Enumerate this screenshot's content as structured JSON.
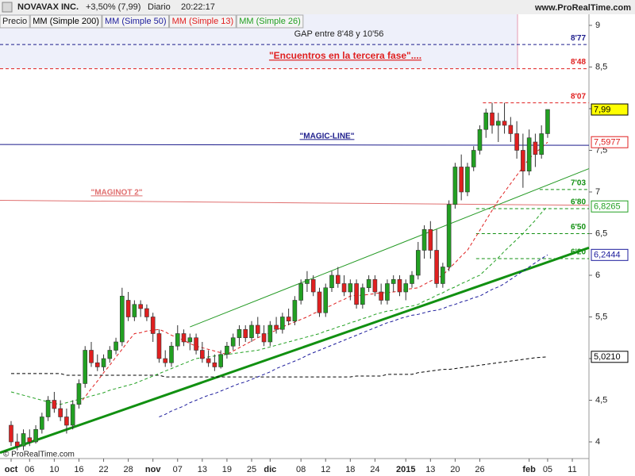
{
  "chart_data": {
    "type": "candlestick",
    "title": "NOVAVAX INC.",
    "subtitle": "+3,50% (7,99)",
    "period": "Diario",
    "time": "20:22:17",
    "source": "www.ProRealTime.com",
    "copyright": "© ProRealTime.com",
    "price_name": "Precio",
    "up_color": "#22a022",
    "down_color": "#e02020",
    "xlim": [
      -1.8,
      93.7
    ],
    "ylim": [
      3.8,
      9.133
    ],
    "yticks": [
      9,
      {
        "value": 8.5,
        "label": "8,5"
      },
      8,
      {
        "value": 7.5,
        "label": "7,5"
      },
      7,
      {
        "value": 6.5,
        "label": "6,5"
      },
      6,
      {
        "value": 5.5,
        "label": "5,5"
      },
      5,
      {
        "value": 4.5,
        "label": "4,5"
      },
      4
    ],
    "categories": [
      "oct",
      null,
      null,
      "06",
      null,
      null,
      null,
      "10",
      null,
      null,
      null,
      "16",
      null,
      null,
      null,
      "22",
      null,
      null,
      null,
      "28",
      null,
      null,
      null,
      "nov",
      null,
      null,
      null,
      "07",
      null,
      null,
      null,
      "13",
      null,
      null,
      null,
      "19",
      null,
      null,
      null,
      "25",
      null,
      null,
      "dic",
      null,
      null,
      null,
      null,
      "08",
      null,
      null,
      null,
      "12",
      null,
      null,
      null,
      "18",
      null,
      null,
      null,
      "24",
      null,
      null,
      null,
      null,
      "2015",
      null,
      null,
      null,
      "13",
      null,
      null,
      null,
      "20",
      null,
      null,
      null,
      "26",
      null,
      null,
      null,
      null,
      null,
      null,
      null,
      "feb",
      null,
      null,
      "05",
      null,
      null,
      null,
      "11",
      null,
      null
    ],
    "ohlc": [
      [
        4.2,
        4.25,
        3.95,
        4.0
      ],
      [
        4.0,
        4.1,
        3.9,
        3.95
      ],
      [
        3.95,
        4.15,
        3.9,
        4.1
      ],
      [
        4.05,
        4.15,
        3.95,
        4.0
      ],
      [
        4.0,
        4.2,
        3.98,
        4.15
      ],
      [
        4.15,
        4.35,
        4.1,
        4.3
      ],
      [
        4.3,
        4.55,
        4.25,
        4.5
      ],
      [
        4.5,
        4.6,
        4.35,
        4.4
      ],
      [
        4.4,
        4.5,
        4.25,
        4.3
      ],
      [
        4.3,
        4.4,
        4.1,
        4.2
      ],
      [
        4.2,
        4.5,
        4.15,
        4.45
      ],
      [
        4.45,
        4.75,
        4.4,
        4.7
      ],
      [
        4.7,
        5.15,
        4.65,
        5.1
      ],
      [
        5.1,
        5.2,
        4.9,
        4.95
      ],
      [
        4.95,
        5.05,
        4.85,
        4.9
      ],
      [
        4.9,
        5.05,
        4.85,
        5.0
      ],
      [
        5.0,
        5.15,
        4.95,
        5.1
      ],
      [
        5.1,
        5.25,
        5.05,
        5.2
      ],
      [
        5.2,
        5.85,
        5.15,
        5.75
      ],
      [
        5.7,
        5.8,
        5.45,
        5.5
      ],
      [
        5.5,
        5.7,
        5.45,
        5.65
      ],
      [
        5.65,
        5.7,
        5.5,
        5.6
      ],
      [
        5.6,
        5.65,
        5.45,
        5.5
      ],
      [
        5.5,
        5.55,
        5.2,
        5.3
      ],
      [
        5.3,
        5.35,
        4.95,
        5.0
      ],
      [
        5.0,
        5.1,
        4.9,
        4.95
      ],
      [
        4.95,
        5.2,
        4.9,
        5.15
      ],
      [
        5.15,
        5.4,
        5.1,
        5.3
      ],
      [
        5.3,
        5.35,
        5.15,
        5.2
      ],
      [
        5.2,
        5.3,
        5.1,
        5.25
      ],
      [
        5.25,
        5.3,
        5.05,
        5.1
      ],
      [
        5.1,
        5.2,
        4.95,
        5.0
      ],
      [
        5.0,
        5.1,
        4.9,
        4.95
      ],
      [
        4.95,
        5.05,
        4.85,
        4.9
      ],
      [
        4.9,
        5.1,
        4.88,
        5.05
      ],
      [
        5.05,
        5.2,
        5.0,
        5.15
      ],
      [
        5.15,
        5.3,
        5.1,
        5.25
      ],
      [
        5.25,
        5.4,
        5.15,
        5.35
      ],
      [
        5.35,
        5.4,
        5.2,
        5.25
      ],
      [
        5.25,
        5.45,
        5.2,
        5.4
      ],
      [
        5.4,
        5.5,
        5.25,
        5.3
      ],
      [
        5.3,
        5.4,
        5.15,
        5.2
      ],
      [
        5.2,
        5.45,
        5.15,
        5.4
      ],
      [
        5.4,
        5.5,
        5.3,
        5.35
      ],
      [
        5.35,
        5.55,
        5.3,
        5.5
      ],
      [
        5.5,
        5.6,
        5.4,
        5.45
      ],
      [
        5.45,
        5.75,
        5.4,
        5.7
      ],
      [
        5.7,
        5.95,
        5.65,
        5.9
      ],
      [
        5.9,
        6.05,
        5.8,
        5.95
      ],
      [
        5.95,
        6.0,
        5.75,
        5.8
      ],
      [
        5.8,
        5.85,
        5.5,
        5.55
      ],
      [
        5.55,
        5.9,
        5.5,
        5.85
      ],
      [
        5.85,
        6.05,
        5.8,
        6.0
      ],
      [
        6.0,
        6.1,
        5.85,
        5.9
      ],
      [
        5.9,
        6.0,
        5.75,
        5.8
      ],
      [
        5.8,
        5.95,
        5.7,
        5.9
      ],
      [
        5.9,
        5.95,
        5.6,
        5.65
      ],
      [
        5.65,
        5.9,
        5.6,
        5.85
      ],
      [
        5.85,
        6.0,
        5.8,
        5.95
      ],
      [
        5.95,
        6.0,
        5.75,
        5.8
      ],
      [
        5.8,
        5.9,
        5.65,
        5.7
      ],
      [
        5.7,
        5.95,
        5.65,
        5.9
      ],
      [
        5.9,
        6.0,
        5.8,
        5.95
      ],
      [
        5.95,
        6.0,
        5.75,
        5.8
      ],
      [
        5.8,
        5.95,
        5.7,
        5.9
      ],
      [
        5.9,
        6.05,
        5.85,
        6.0
      ],
      [
        6.0,
        6.4,
        5.95,
        6.3
      ],
      [
        6.3,
        6.6,
        6.2,
        6.55
      ],
      [
        6.55,
        6.65,
        6.2,
        6.3
      ],
      [
        6.3,
        6.55,
        5.85,
        5.9
      ],
      [
        5.9,
        6.15,
        5.85,
        6.1
      ],
      [
        6.1,
        6.9,
        6.05,
        6.85
      ],
      [
        6.85,
        7.35,
        6.8,
        7.3
      ],
      [
        7.3,
        7.45,
        6.9,
        7.0
      ],
      [
        7.0,
        7.35,
        6.95,
        7.3
      ],
      [
        7.3,
        7.55,
        7.25,
        7.5
      ],
      [
        7.5,
        7.8,
        7.45,
        7.75
      ],
      [
        7.75,
        8.0,
        7.65,
        7.95
      ],
      [
        7.95,
        8.07,
        7.7,
        7.8
      ],
      [
        7.8,
        7.95,
        7.6,
        7.85
      ],
      [
        7.85,
        8.07,
        7.7,
        7.8
      ],
      [
        7.8,
        7.9,
        7.6,
        7.7
      ],
      [
        7.7,
        7.85,
        7.4,
        7.5
      ],
      [
        7.5,
        7.7,
        7.05,
        7.25
      ],
      [
        7.25,
        7.75,
        7.2,
        7.65
      ],
      [
        7.6,
        7.7,
        7.3,
        7.45
      ],
      [
        7.45,
        7.8,
        7.4,
        7.7
      ],
      [
        7.7,
        7.99,
        7.65,
        7.99
      ],
      null,
      null,
      null,
      null,
      null,
      null
    ],
    "last": {
      "value": 7.99,
      "label": "7,99"
    },
    "series": [
      {
        "name": "MM (Simple 200)",
        "color": "#000000",
        "last": {
          "value": 5.021,
          "label": "5,0210"
        },
        "values": [
          4.82,
          4.82,
          4.82,
          4.82,
          4.82,
          4.82,
          4.82,
          4.82,
          4.82,
          4.8,
          4.8,
          4.8,
          4.8,
          4.8,
          4.8,
          4.8,
          4.8,
          4.8,
          4.8,
          4.8,
          4.8,
          4.8,
          4.8,
          4.8,
          4.8,
          4.78,
          4.78,
          4.78,
          4.78,
          4.78,
          4.78,
          4.78,
          4.78,
          4.78,
          4.78,
          4.78,
          4.78,
          4.78,
          4.78,
          4.78,
          4.78,
          4.78,
          4.78,
          4.78,
          4.78,
          4.78,
          4.78,
          4.78,
          4.78,
          4.78,
          4.78,
          4.78,
          4.78,
          4.78,
          4.78,
          4.78,
          4.79,
          4.79,
          4.79,
          4.79,
          4.79,
          4.81,
          4.81,
          4.81,
          4.81,
          4.81,
          4.83,
          4.84,
          4.85,
          4.86,
          4.87,
          4.87,
          4.88,
          4.89,
          4.9,
          4.91,
          4.92,
          4.93,
          4.94,
          4.95,
          4.96,
          4.97,
          4.98,
          4.99,
          5.0,
          5.01,
          5.015,
          5.021,
          null,
          null,
          null,
          null,
          null,
          null
        ]
      },
      {
        "name": "MM (Simple 50)",
        "color": "#1c1c9c",
        "last": {
          "value": 6.2444,
          "label": "6,2444"
        },
        "values": [
          null,
          null,
          null,
          null,
          null,
          null,
          null,
          null,
          null,
          null,
          null,
          null,
          null,
          null,
          null,
          null,
          null,
          null,
          null,
          null,
          null,
          null,
          null,
          null,
          4.3,
          4.33,
          4.37,
          4.4,
          4.43,
          4.47,
          4.5,
          4.53,
          4.56,
          4.58,
          4.61,
          4.64,
          4.67,
          4.7,
          4.72,
          4.75,
          4.78,
          4.81,
          4.84,
          4.88,
          4.91,
          4.94,
          4.97,
          5.0,
          5.04,
          5.07,
          5.1,
          5.13,
          5.16,
          5.19,
          5.22,
          5.25,
          5.28,
          5.31,
          5.34,
          5.37,
          5.4,
          5.43,
          5.45,
          5.48,
          5.5,
          5.52,
          5.53,
          5.55,
          5.57,
          5.58,
          5.6,
          5.63,
          5.65,
          5.68,
          5.7,
          5.73,
          5.75,
          5.79,
          5.83,
          5.86,
          5.9,
          5.95,
          6.0,
          6.05,
          6.1,
          6.15,
          6.2,
          6.2444,
          null,
          null,
          null,
          null,
          null,
          null
        ]
      },
      {
        "name": "MM (Simple 13)",
        "color": "#e02020",
        "last": {
          "value": 7.5977,
          "label": "7,5977"
        },
        "values": [
          null,
          null,
          null,
          null,
          null,
          null,
          null,
          null,
          null,
          null,
          null,
          4.45,
          4.54,
          4.64,
          4.73,
          4.83,
          4.92,
          5.02,
          5.11,
          5.21,
          5.3,
          5.31,
          5.33,
          5.34,
          5.35,
          5.32,
          5.28,
          5.25,
          5.22,
          5.18,
          5.15,
          5.13,
          5.11,
          5.09,
          5.07,
          5.05,
          5.09,
          5.13,
          5.17,
          5.21,
          5.25,
          5.28,
          5.31,
          5.34,
          5.38,
          5.41,
          5.44,
          5.47,
          5.5,
          5.54,
          5.57,
          5.61,
          5.64,
          5.68,
          5.71,
          5.75,
          5.76,
          5.76,
          5.77,
          5.78,
          5.79,
          5.79,
          5.8,
          5.81,
          5.83,
          5.84,
          5.85,
          5.89,
          5.93,
          5.96,
          6.0,
          6.08,
          6.15,
          6.23,
          6.3,
          6.42,
          6.54,
          6.66,
          6.78,
          6.9,
          7.0,
          7.1,
          7.2,
          7.3,
          7.4,
          7.47,
          7.53,
          7.5977,
          null,
          null,
          null,
          null,
          null,
          null
        ]
      },
      {
        "name": "MM (Simple 26)",
        "color": "#22a022",
        "last": {
          "value": 6.8265,
          "label": "6,8265"
        },
        "values": [
          4.6,
          4.58,
          4.56,
          4.54,
          4.52,
          4.5,
          4.48,
          4.46,
          4.45,
          4.47,
          4.49,
          4.51,
          4.53,
          4.55,
          4.57,
          4.59,
          4.62,
          4.64,
          4.66,
          4.68,
          4.7,
          4.73,
          4.76,
          4.79,
          4.82,
          4.85,
          4.88,
          4.91,
          4.94,
          4.97,
          5.0,
          5.01,
          5.02,
          5.03,
          5.04,
          5.05,
          5.06,
          5.07,
          5.08,
          5.09,
          5.1,
          5.12,
          5.14,
          5.16,
          5.18,
          5.2,
          5.22,
          5.24,
          5.26,
          5.28,
          5.3,
          5.33,
          5.35,
          5.38,
          5.4,
          5.43,
          5.45,
          5.48,
          5.5,
          5.53,
          5.55,
          5.57,
          5.58,
          5.6,
          5.62,
          5.63,
          5.65,
          5.69,
          5.72,
          5.76,
          5.79,
          5.83,
          5.86,
          5.9,
          5.93,
          5.97,
          6.0,
          6.07,
          6.14,
          6.21,
          6.29,
          6.36,
          6.43,
          6.5,
          6.58,
          6.66,
          6.75,
          6.8265,
          null,
          null,
          null,
          null,
          null,
          null
        ]
      }
    ],
    "trendlines": [
      {
        "name": "\"MAGIC-LINE\"",
        "color": "#1c1c8c",
        "width": 1,
        "x": [
          -1.8,
          93.7
        ],
        "values": [
          7.57,
          7.56
        ]
      },
      {
        "name": "\"MAGINOT 2\"",
        "color": "#e07070",
        "width": 1,
        "x": [
          -1.8,
          93.7
        ],
        "values": [
          6.9,
          6.84
        ]
      },
      {
        "color": "#119011",
        "width": 3,
        "x": [
          -1.8,
          93.7
        ],
        "values": [
          3.87,
          6.33
        ]
      },
      {
        "color": "#229922",
        "width": 1,
        "x": [
          29,
          93.7
        ],
        "values": [
          5.38,
          7.28
        ]
      }
    ],
    "levels": [
      {
        "value": 8.77,
        "label": "8'77",
        "color": "#1c1c8c",
        "x": [
          -1.8,
          93.7
        ]
      },
      {
        "value": 8.48,
        "label": "8'48",
        "color": "#e02020",
        "x": [
          -1.8,
          93.7
        ]
      },
      {
        "value": 8.07,
        "label": "8'07",
        "color": "#e02020",
        "x": [
          76.5,
          93.7
        ]
      },
      {
        "value": 7.03,
        "label": "7'03",
        "color": "#119011",
        "x": [
          85.7,
          93.7
        ]
      },
      {
        "value": 6.8,
        "label": "6'80",
        "color": "#119011",
        "x": [
          75.4,
          93.7
        ]
      },
      {
        "value": 6.5,
        "label": "6'50",
        "color": "#119011",
        "x": [
          75.4,
          93.7
        ]
      },
      {
        "value": 6.2,
        "label": "6'20",
        "color": "#119011",
        "x": [
          75.4,
          93.7
        ]
      }
    ],
    "gap": {
      "from": 8.48,
      "text": "GAP entre 8'48 y 10'56",
      "note": "\"Encuentros en la tercera fase\"...."
    }
  }
}
